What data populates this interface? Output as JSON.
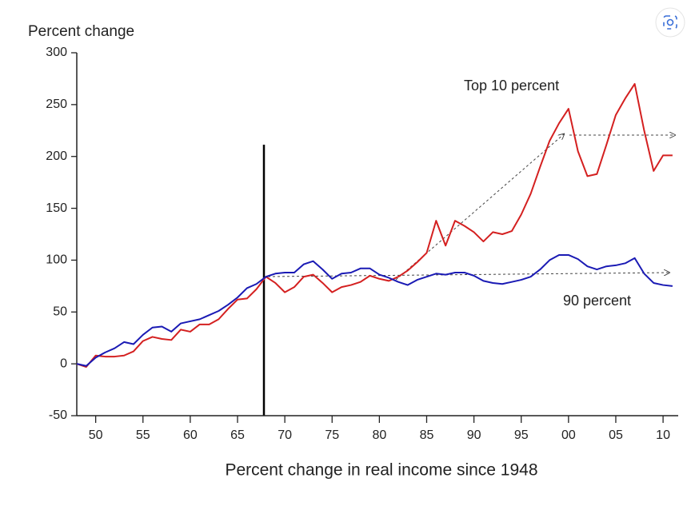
{
  "chart_data": {
    "type": "line",
    "y_label": "Percent change",
    "x_label": "Percent change in real income since 1948",
    "x": [
      1948,
      1949,
      1950,
      1951,
      1952,
      1953,
      1954,
      1955,
      1956,
      1957,
      1958,
      1959,
      1960,
      1961,
      1962,
      1963,
      1964,
      1965,
      1966,
      1967,
      1968,
      1969,
      1970,
      1971,
      1972,
      1973,
      1974,
      1975,
      1976,
      1977,
      1978,
      1979,
      1980,
      1981,
      1982,
      1983,
      1984,
      1985,
      1986,
      1987,
      1988,
      1989,
      1990,
      1991,
      1992,
      1993,
      1994,
      1995,
      1996,
      1997,
      1998,
      1999,
      2000,
      2001,
      2002,
      2003,
      2004,
      2005,
      2006,
      2007,
      2008,
      2009,
      2010,
      2011
    ],
    "series": [
      {
        "name": "Top 10 percent",
        "color": "#d42020",
        "values": [
          0,
          -3,
          8,
          7,
          7,
          8,
          12,
          22,
          26,
          24,
          23,
          33,
          31,
          38,
          38,
          43,
          53,
          62,
          63,
          72,
          84,
          78,
          69,
          74,
          84,
          86,
          78,
          69,
          74,
          76,
          79,
          85,
          82,
          80,
          84,
          90,
          98,
          107,
          138,
          114,
          138,
          133,
          127,
          118,
          127,
          125,
          128,
          144,
          164,
          190,
          215,
          232,
          246,
          205,
          181,
          183,
          211,
          240,
          256,
          270,
          225,
          186,
          201,
          201
        ]
      },
      {
        "name": "90 percent",
        "color": "#1a1ab4",
        "values": [
          0,
          -2,
          6,
          11,
          15,
          21,
          19,
          28,
          35,
          36,
          31,
          39,
          41,
          43,
          47,
          51,
          57,
          64,
          73,
          77,
          84,
          87,
          88,
          88,
          96,
          99,
          91,
          82,
          87,
          88,
          92,
          92,
          86,
          83,
          79,
          76,
          81,
          84,
          87,
          86,
          88,
          88,
          85,
          80,
          78,
          77,
          79,
          81,
          84,
          91,
          100,
          105,
          105,
          101,
          94,
          91,
          94,
          95,
          97,
          102,
          87,
          78,
          76,
          75
        ]
      }
    ],
    "xlim": [
      1948,
      2011.6
    ],
    "xticks": [
      {
        "value": 1950,
        "label": "50"
      },
      {
        "value": 1955,
        "label": "55"
      },
      {
        "value": 1960,
        "label": "60"
      },
      {
        "value": 1965,
        "label": "65"
      },
      {
        "value": 1970,
        "label": "70"
      },
      {
        "value": 1975,
        "label": "75"
      },
      {
        "value": 1980,
        "label": "80"
      },
      {
        "value": 1985,
        "label": "85"
      },
      {
        "value": 1990,
        "label": "90"
      },
      {
        "value": 1995,
        "label": "95"
      },
      {
        "value": 2000,
        "label": "00"
      },
      {
        "value": 2005,
        "label": "05"
      },
      {
        "value": 2010,
        "label": "10"
      }
    ],
    "ylim": [
      -50,
      300
    ],
    "yticks": [
      -50,
      0,
      50,
      100,
      150,
      200,
      250,
      300
    ]
  }
}
